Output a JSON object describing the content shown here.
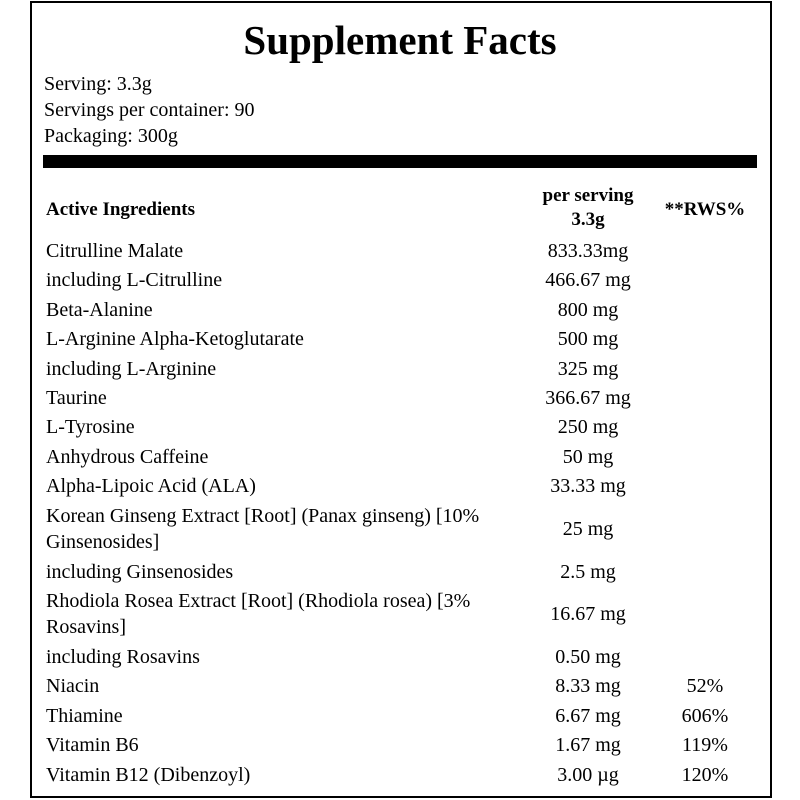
{
  "header": {
    "title": "Supplement Facts",
    "info": [
      "Serving: 3.3g",
      "Servings per container: 90",
      "Packaging: 300g"
    ]
  },
  "table": {
    "columns": [
      "Active Ingredients",
      "per serving 3.3g",
      "**RWS%"
    ],
    "rows": [
      {
        "name": "Citrulline Malate",
        "amount": "833.33mg"
      },
      {
        "name": "including L-Citrulline",
        "amount": "466.67 mg"
      },
      {
        "name": "Beta-Alanine",
        "amount": "800 mg"
      },
      {
        "name": "L-Arginine Alpha-Ketoglutarate",
        "amount": "500 mg"
      },
      {
        "name": "including L-Arginine",
        "amount": "325 mg"
      },
      {
        "name": "Taurine",
        "amount": "366.67 mg"
      },
      {
        "name": "L-Tyrosine",
        "amount": "250 mg"
      },
      {
        "name": "Anhydrous Caffeine",
        "amount": "50 mg"
      },
      {
        "name": "Alpha-Lipoic Acid (ALA)",
        "amount": "33.33 mg"
      },
      {
        "name": "Korean Ginseng Extract [Root] (Panax ginseng) [10% Ginsenosides]",
        "amount": "25 mg"
      },
      {
        "name": "including Ginsenosides",
        "amount": "2.5 mg"
      },
      {
        "name": "Rhodiola Rosea Extract [Root] (Rhodiola rosea) [3% Rosavins]",
        "amount": "16.67 mg"
      },
      {
        "name": "including Rosavins",
        "amount": "0.50 mg"
      },
      {
        "name": "Niacin",
        "amount": "8.33 mg",
        "rws": "52%"
      },
      {
        "name": "Thiamine",
        "amount": "6.67 mg",
        "rws": "606%"
      },
      {
        "name": "Vitamin B6",
        "amount": "1.67 mg",
        "rws": "119%"
      },
      {
        "name": "Vitamin B12 (Dibenzoyl)",
        "amount": "3.00 µg",
        "rws": "120%"
      }
    ]
  }
}
